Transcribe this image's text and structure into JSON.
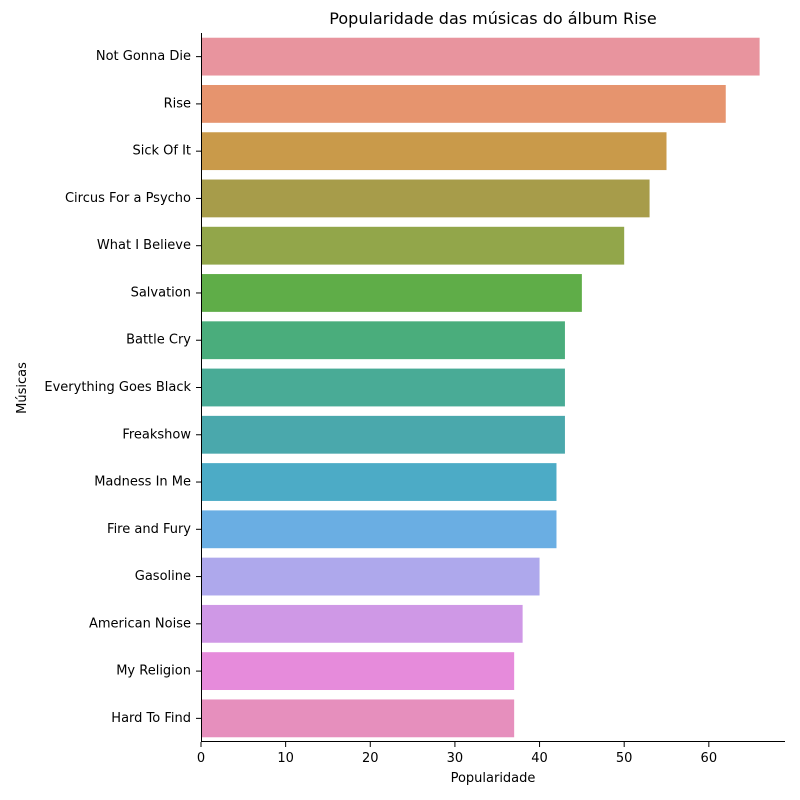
{
  "chart_data": {
    "type": "bar",
    "orientation": "horizontal",
    "title": "Popularidade das músicas do álbum Rise",
    "xlabel": "Popularidade",
    "ylabel": "Músicas",
    "xlim": [
      0,
      69
    ],
    "xticks": [
      0,
      10,
      20,
      30,
      40,
      50,
      60
    ],
    "grid": false,
    "categories": [
      "Not Gonna Die",
      "Rise",
      "Sick Of It",
      "Circus For a Psycho",
      "What I Believe",
      "Salvation",
      "Battle Cry",
      "Everything Goes Black",
      "Freakshow",
      "Madness In Me",
      "Fire and Fury",
      "Gasoline",
      "American Noise",
      "My Religion",
      "Hard To Find"
    ],
    "values": [
      66,
      62,
      55,
      53,
      50,
      45,
      43,
      43,
      43,
      42,
      42,
      40,
      38,
      37,
      37
    ],
    "colors": [
      "#e8949e",
      "#e6946e",
      "#c99a4a",
      "#a79c4a",
      "#92a64a",
      "#5fad48",
      "#4aad7c",
      "#49ab96",
      "#4aa8ac",
      "#4cabc6",
      "#6aaee3",
      "#aea8ec",
      "#cf98e6",
      "#e68bdb",
      "#e68fbd"
    ]
  }
}
